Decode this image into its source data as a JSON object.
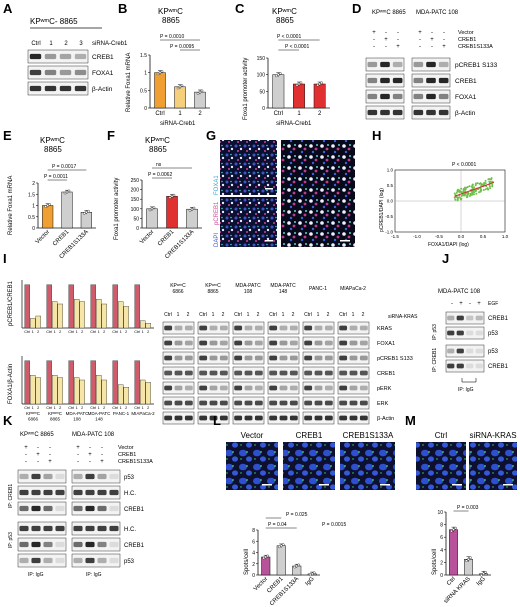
{
  "panels": {
    "A": {
      "label": "A",
      "title": "KPʷᵐC- 8865",
      "lanes": [
        "Ctrl",
        "1",
        "2",
        "3"
      ],
      "sirna": "siRNA-Creb1",
      "blots": [
        "CREB1",
        "FOXA1",
        "β-Actin"
      ]
    },
    "B": {
      "label": "B",
      "title_line1": "KPʷᵐC",
      "title_line2": "8865",
      "ylabel": "Relative Foxa1 mRNA",
      "xsub": "siRNA-Creb1",
      "p1": "P = 0.0010",
      "p2": "P = 0.0095"
    },
    "C": {
      "label": "C",
      "title_line1": "KPʷᵐC",
      "title_line2": "8865",
      "ylabel": "Foxa1 promoter activity",
      "xsub": "siRNA-Creb1",
      "p1": "P < 0.0001",
      "p2": "P < 0.0001"
    },
    "D": {
      "label": "D",
      "col1": "KPʷᵐC 8865",
      "col2": "MDA-PATC 108",
      "conditions": [
        "Vector",
        "CREB1",
        "CREB1S133A"
      ],
      "blots": [
        "pCREB1 S133",
        "CREB1",
        "FOXA1",
        "β-Actin"
      ]
    },
    "E": {
      "label": "E",
      "title_line1": "KPʷᵐC",
      "title_line2": "8865",
      "ylabel": "Relative Foxa1 mRNA",
      "p1": "P = 0.0017",
      "p2": "P = 0.0011"
    },
    "F": {
      "label": "F",
      "title_line1": "KPʷᵐC",
      "title_line2": "8865",
      "ylabel": "Foxa1 promoter activity",
      "p1": "ns",
      "p2": "P = 0.0062"
    },
    "G": {
      "label": "G",
      "stains": [
        "DAPI",
        "pCREB1",
        "FOXA1"
      ]
    },
    "H": {
      "label": "H",
      "ylabel": "pCREB1/DAPI (log)",
      "xlabel": "FOXA1/DAPI (log)",
      "pval": "P < 0.0001",
      "xticks": [
        "-1.5",
        "-1.0",
        "-0.5",
        "0.0",
        "0.5",
        "1.0"
      ],
      "yticks": [
        "1.0",
        "0.5",
        "0.0",
        "-0.5",
        "-1.0"
      ]
    },
    "I": {
      "label": "I",
      "ylabel_top": "pCREB1/CREB1",
      "ylabel_bottom": "FOXA1/β-Actin",
      "lane_labels": [
        "Ctrl",
        "1",
        "2"
      ],
      "lines": [
        "KPʷᵐC 6866",
        "KPʷᵐC 8865",
        "MDA-PATC 108",
        "MDA-PATC 148",
        "PANC-1",
        "MIAPaCa-2"
      ],
      "sirna": "siRNA-KRAS",
      "blots": [
        "KRAS",
        "FOXA1",
        "pCREB1 S133",
        "CREB1",
        "pERK",
        "ERK",
        "β-Actin"
      ]
    },
    "J": {
      "label": "J",
      "title": "MDA-PATC 108",
      "egf": "EGF",
      "ip1": "IP: p53",
      "ip2": "IP: CREB1",
      "igg": "IP: IgG",
      "blots": [
        "CREB1",
        "p53",
        "p53",
        "CREB1"
      ]
    },
    "K": {
      "label": "K",
      "col1": "KPʷᵐC 8865",
      "col2": "MDA-PATC 108",
      "conditions": [
        "Vector",
        "CREB1",
        "CREB1S133A"
      ],
      "ip1": "IP: CREB1",
      "ip2": "IP: p53",
      "igg": "IP: IgG",
      "blots": [
        "p53",
        "H.C.",
        "CREB1",
        "H.C.",
        "CREB1",
        "p53"
      ]
    },
    "L": {
      "label": "L",
      "headers": [
        "Vector",
        "CREB1",
        "CREB1S133A"
      ],
      "ylabel": "Spots/cell",
      "p1": "P = 0.025",
      "p2": "P = 0.04",
      "p3": "P = 0.0015"
    },
    "M": {
      "label": "M",
      "headers": [
        "Ctrl",
        "siRNA-KRAS"
      ],
      "ylabel": "Spots/cell",
      "pval": "P = 0.003"
    }
  },
  "chart_data": [
    {
      "type": "bar",
      "panel": "B",
      "categories": [
        "Ctrl",
        "1",
        "2"
      ],
      "values": [
        1.0,
        0.6,
        0.45
      ],
      "ylim": [
        0,
        1.5
      ],
      "yticks": [
        0,
        0.5,
        1.0,
        1.5
      ],
      "colors": [
        "#f0a033",
        "#f6cf7c",
        "#cfcfcf"
      ]
    },
    {
      "type": "bar",
      "panel": "C",
      "categories": [
        "Ctrl",
        "1",
        "2"
      ],
      "values": [
        100,
        72,
        72
      ],
      "ylim": [
        0,
        150
      ],
      "yticks": [
        0,
        50,
        100,
        150
      ],
      "colors": [
        "#cfcfcf",
        "#e03030",
        "#e03030"
      ]
    },
    {
      "type": "bar",
      "panel": "E",
      "categories": [
        "Vector",
        "CREB1",
        "CREB1S133A"
      ],
      "values": [
        1.0,
        1.6,
        0.7
      ],
      "ylim": [
        0,
        2.0
      ],
      "yticks": [
        0,
        0.5,
        1.0,
        1.5,
        2.0
      ],
      "colors": [
        "#f0a033",
        "#cfcfcf",
        "#cfcfcf"
      ]
    },
    {
      "type": "bar",
      "panel": "F",
      "categories": [
        "Vector",
        "CREB1",
        "CREB1S133A"
      ],
      "values": [
        100,
        165,
        98
      ],
      "ylim": [
        0,
        250
      ],
      "yticks": [
        0,
        50,
        100,
        150,
        200,
        250
      ],
      "colors": [
        "#cfcfcf",
        "#e03030",
        "#cfcfcf"
      ]
    },
    {
      "type": "bar",
      "panel": "L",
      "categories": [
        "Vector",
        "CREB1",
        "CREB1S133A",
        "IgG"
      ],
      "values": [
        3.2,
        5.2,
        1.6,
        0.2
      ],
      "ylim": [
        0,
        8
      ],
      "yticks": [
        0,
        2,
        4,
        6,
        8
      ],
      "colors": [
        "#b8529a",
        "#cfcfcf",
        "#cfcfcf",
        "#cfcfcf"
      ]
    },
    {
      "type": "bar",
      "panel": "M",
      "categories": [
        "Ctrl",
        "siRNA KRAS",
        "IgG"
      ],
      "values": [
        7.2,
        2.5,
        0.2
      ],
      "ylim": [
        0,
        10
      ],
      "yticks": [
        0,
        2,
        4,
        6,
        8,
        10
      ],
      "colors": [
        "#b8529a",
        "#cfcfcf",
        "#cfcfcf"
      ]
    },
    {
      "type": "bar",
      "panel": "I-top",
      "series": [
        {
          "name": "KPʷᵐC 6866",
          "values": [
            0.9,
            0.2,
            0.25
          ]
        },
        {
          "name": "KPʷᵐC 8865",
          "values": [
            0.9,
            0.55,
            0.5
          ]
        },
        {
          "name": "MDA-PATC 108",
          "values": [
            0.9,
            0.6,
            0.55
          ]
        },
        {
          "name": "MDA-PATC 148",
          "values": [
            0.9,
            0.6,
            0.5
          ]
        },
        {
          "name": "PANC-1",
          "values": [
            0.9,
            0.55,
            0.45
          ]
        },
        {
          "name": "MIA-PaCa-2",
          "values": [
            0.9,
            0.15,
            0.1
          ]
        }
      ],
      "categories": [
        "Ctrl",
        "1",
        "2"
      ],
      "colors": [
        "#d05b6a",
        "#f5e6a8",
        "#f5e6a8"
      ]
    },
    {
      "type": "bar",
      "panel": "I-bottom",
      "series": [
        {
          "name": "KPʷᵐC 6866",
          "values": [
            0.9,
            0.6,
            0.55
          ]
        },
        {
          "name": "KPʷᵐC 8865",
          "values": [
            0.9,
            0.6,
            0.55
          ]
        },
        {
          "name": "MDA-PATC 108",
          "values": [
            0.9,
            0.55,
            0.5
          ]
        },
        {
          "name": "MDA-PATC 148",
          "values": [
            0.9,
            0.6,
            0.5
          ]
        },
        {
          "name": "PANC-1",
          "values": [
            0.9,
            0.4,
            0.35
          ]
        },
        {
          "name": "MIA-PaCa-2",
          "values": [
            0.9,
            0.5,
            0.45
          ]
        }
      ],
      "categories": [
        "Ctrl",
        "1",
        "2"
      ],
      "colors": [
        "#d05b6a",
        "#f5e6a8",
        "#f5e6a8"
      ]
    },
    {
      "type": "scatter",
      "panel": "H",
      "xlim": [
        -1.5,
        1.0
      ],
      "ylim": [
        -1.0,
        1.0
      ],
      "trend": {
        "x": [
          -0.15,
          0.75
        ],
        "y": [
          0.15,
          0.6
        ]
      }
    }
  ]
}
